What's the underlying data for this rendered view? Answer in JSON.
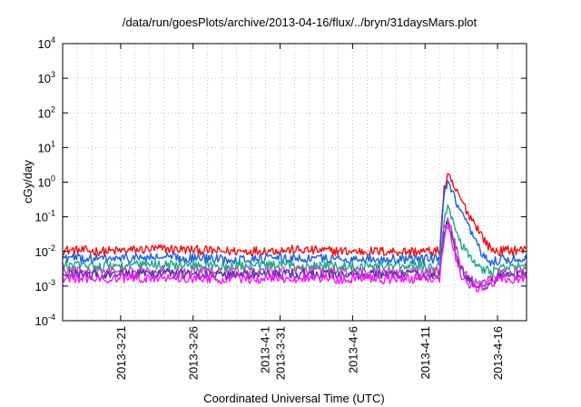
{
  "chart_data": {
    "type": "line",
    "title": "/data/run/goesPlots/archive/2013-04-16/flux/../bryn/31daysMars.plot",
    "xlabel": "Coordinated Universal Time (UTC)",
    "ylabel": "cGy/day",
    "yscale": "log",
    "ylim": [
      0.0001,
      10000
    ],
    "xlim": [
      "2013-03-17",
      "2013-04-18"
    ],
    "grid": true,
    "y_ticks": [
      {
        "base": "10",
        "exp": "4"
      },
      {
        "base": "10",
        "exp": "3"
      },
      {
        "base": "10",
        "exp": "2"
      },
      {
        "base": "10",
        "exp": "1"
      },
      {
        "base": "10",
        "exp": "0"
      },
      {
        "base": "10",
        "exp": "-1"
      },
      {
        "base": "10",
        "exp": "-2"
      },
      {
        "base": "10",
        "exp": "-3"
      },
      {
        "base": "10",
        "exp": "-4"
      }
    ],
    "x_ticks": [
      {
        "date": "2013-03-21",
        "lines": [
          "2013-3-21"
        ]
      },
      {
        "date": "2013-03-26",
        "lines": [
          "2013-3-26"
        ]
      },
      {
        "date": "2013-04-01",
        "lines": [
          "2013-3-31",
          "2013-4-1"
        ]
      },
      {
        "date": "2013-04-06",
        "lines": [
          "2013-4-6"
        ]
      },
      {
        "date": "2013-04-11",
        "lines": [
          "2013-4-11"
        ]
      },
      {
        "date": "2013-04-16",
        "lines": [
          "2013-4-16"
        ]
      }
    ],
    "series": [
      {
        "color": "#ee1111",
        "values": [
          [
            "2013-03-17",
            0.011
          ],
          [
            "2013-03-20",
            0.01
          ],
          [
            "2013-03-24",
            0.012
          ],
          [
            "2013-03-28",
            0.01
          ],
          [
            "2013-04-02",
            0.011
          ],
          [
            "2013-04-06",
            0.01
          ],
          [
            "2013-04-10",
            0.01
          ],
          [
            "2013-04-12",
            0.01
          ],
          [
            "2013-04-12.3",
            0.6
          ],
          [
            "2013-04-12.6",
            1.5
          ],
          [
            "2013-04-13",
            0.7
          ],
          [
            "2013-04-13.5",
            0.3
          ],
          [
            "2013-04-14",
            0.12
          ],
          [
            "2013-04-14.5",
            0.06
          ],
          [
            "2013-04-15",
            0.025
          ],
          [
            "2013-04-15.5",
            0.012
          ],
          [
            "2013-04-16",
            0.01
          ],
          [
            "2013-04-17",
            0.011
          ],
          [
            "2013-04-18",
            0.011
          ]
        ]
      },
      {
        "color": "#1e5fe0",
        "values": [
          [
            "2013-03-17",
            0.0065
          ],
          [
            "2013-03-20",
            0.006
          ],
          [
            "2013-03-24",
            0.0068
          ],
          [
            "2013-03-28",
            0.006
          ],
          [
            "2013-04-02",
            0.0063
          ],
          [
            "2013-04-06",
            0.006
          ],
          [
            "2013-04-10",
            0.006
          ],
          [
            "2013-04-12",
            0.006
          ],
          [
            "2013-04-12.3",
            0.4
          ],
          [
            "2013-04-12.6",
            1.0
          ],
          [
            "2013-04-13",
            0.35
          ],
          [
            "2013-04-13.5",
            0.12
          ],
          [
            "2013-04-14",
            0.05
          ],
          [
            "2013-04-14.5",
            0.018
          ],
          [
            "2013-04-15",
            0.007
          ],
          [
            "2013-04-15.5",
            0.005
          ],
          [
            "2013-04-16",
            0.0055
          ],
          [
            "2013-04-17",
            0.006
          ],
          [
            "2013-04-18",
            0.0065
          ]
        ]
      },
      {
        "color": "#1aaa88",
        "values": [
          [
            "2013-03-17",
            0.004
          ],
          [
            "2013-03-20",
            0.0038
          ],
          [
            "2013-03-24",
            0.0042
          ],
          [
            "2013-03-28",
            0.0038
          ],
          [
            "2013-04-02",
            0.004
          ],
          [
            "2013-04-06",
            0.0038
          ],
          [
            "2013-04-10",
            0.0038
          ],
          [
            "2013-04-12",
            0.0038
          ],
          [
            "2013-04-12.3",
            0.08
          ],
          [
            "2013-04-12.6",
            0.22
          ],
          [
            "2013-04-13",
            0.06
          ],
          [
            "2013-04-13.5",
            0.015
          ],
          [
            "2013-04-14",
            0.008
          ],
          [
            "2013-04-14.5",
            0.004
          ],
          [
            "2013-04-15",
            0.003
          ],
          [
            "2013-04-15.5",
            0.0028
          ],
          [
            "2013-04-16",
            0.003
          ],
          [
            "2013-04-17",
            0.0035
          ],
          [
            "2013-04-18",
            0.0038
          ]
        ]
      },
      {
        "color": "#b84ab8",
        "values": [
          [
            "2013-03-17",
            0.0028
          ],
          [
            "2013-03-20",
            0.0026
          ],
          [
            "2013-03-24",
            0.0029
          ],
          [
            "2013-03-28",
            0.0026
          ],
          [
            "2013-04-02",
            0.0028
          ],
          [
            "2013-04-06",
            0.0026
          ],
          [
            "2013-04-10",
            0.0026
          ],
          [
            "2013-04-12",
            0.0026
          ],
          [
            "2013-04-12.3",
            0.04
          ],
          [
            "2013-04-12.6",
            0.1
          ],
          [
            "2013-04-13",
            0.02
          ],
          [
            "2013-04-13.5",
            0.004
          ],
          [
            "2013-04-14",
            0.0018
          ],
          [
            "2013-04-14.5",
            0.0013
          ],
          [
            "2013-04-15",
            0.0012
          ],
          [
            "2013-04-15.5",
            0.0015
          ],
          [
            "2013-04-16",
            0.0022
          ],
          [
            "2013-04-17",
            0.0025
          ],
          [
            "2013-04-18",
            0.0027
          ]
        ]
      },
      {
        "color": "#5533aa",
        "values": [
          [
            "2013-03-17",
            0.0022
          ],
          [
            "2013-03-20",
            0.0021
          ],
          [
            "2013-03-24",
            0.0023
          ],
          [
            "2013-03-28",
            0.0021
          ],
          [
            "2013-04-02",
            0.0022
          ],
          [
            "2013-04-06",
            0.0021
          ],
          [
            "2013-04-10",
            0.0021
          ],
          [
            "2013-04-12",
            0.0021
          ],
          [
            "2013-04-12.3",
            0.03
          ],
          [
            "2013-04-12.6",
            0.08
          ],
          [
            "2013-04-13",
            0.015
          ],
          [
            "2013-04-13.5",
            0.003
          ],
          [
            "2013-04-14",
            0.0015
          ],
          [
            "2013-04-14.5",
            0.0011
          ],
          [
            "2013-04-15",
            0.001
          ],
          [
            "2013-04-15.5",
            0.0013
          ],
          [
            "2013-04-16",
            0.0018
          ],
          [
            "2013-04-17",
            0.002
          ],
          [
            "2013-04-18",
            0.0021
          ]
        ]
      },
      {
        "color": "#ff11ff",
        "values": [
          [
            "2013-03-17",
            0.0017
          ],
          [
            "2013-03-20",
            0.0016
          ],
          [
            "2013-03-24",
            0.0018
          ],
          [
            "2013-03-28",
            0.0016
          ],
          [
            "2013-04-02",
            0.0017
          ],
          [
            "2013-04-06",
            0.0016
          ],
          [
            "2013-04-10",
            0.0016
          ],
          [
            "2013-04-12",
            0.0016
          ],
          [
            "2013-04-12.3",
            0.02
          ],
          [
            "2013-04-12.6",
            0.06
          ],
          [
            "2013-04-13",
            0.01
          ],
          [
            "2013-04-13.5",
            0.002
          ],
          [
            "2013-04-14",
            0.0012
          ],
          [
            "2013-04-14.5",
            0.0009
          ],
          [
            "2013-04-15",
            0.0009
          ],
          [
            "2013-04-15.5",
            0.0012
          ],
          [
            "2013-04-16",
            0.0015
          ],
          [
            "2013-04-17",
            0.0016
          ],
          [
            "2013-04-18",
            0.0017
          ]
        ]
      }
    ]
  }
}
